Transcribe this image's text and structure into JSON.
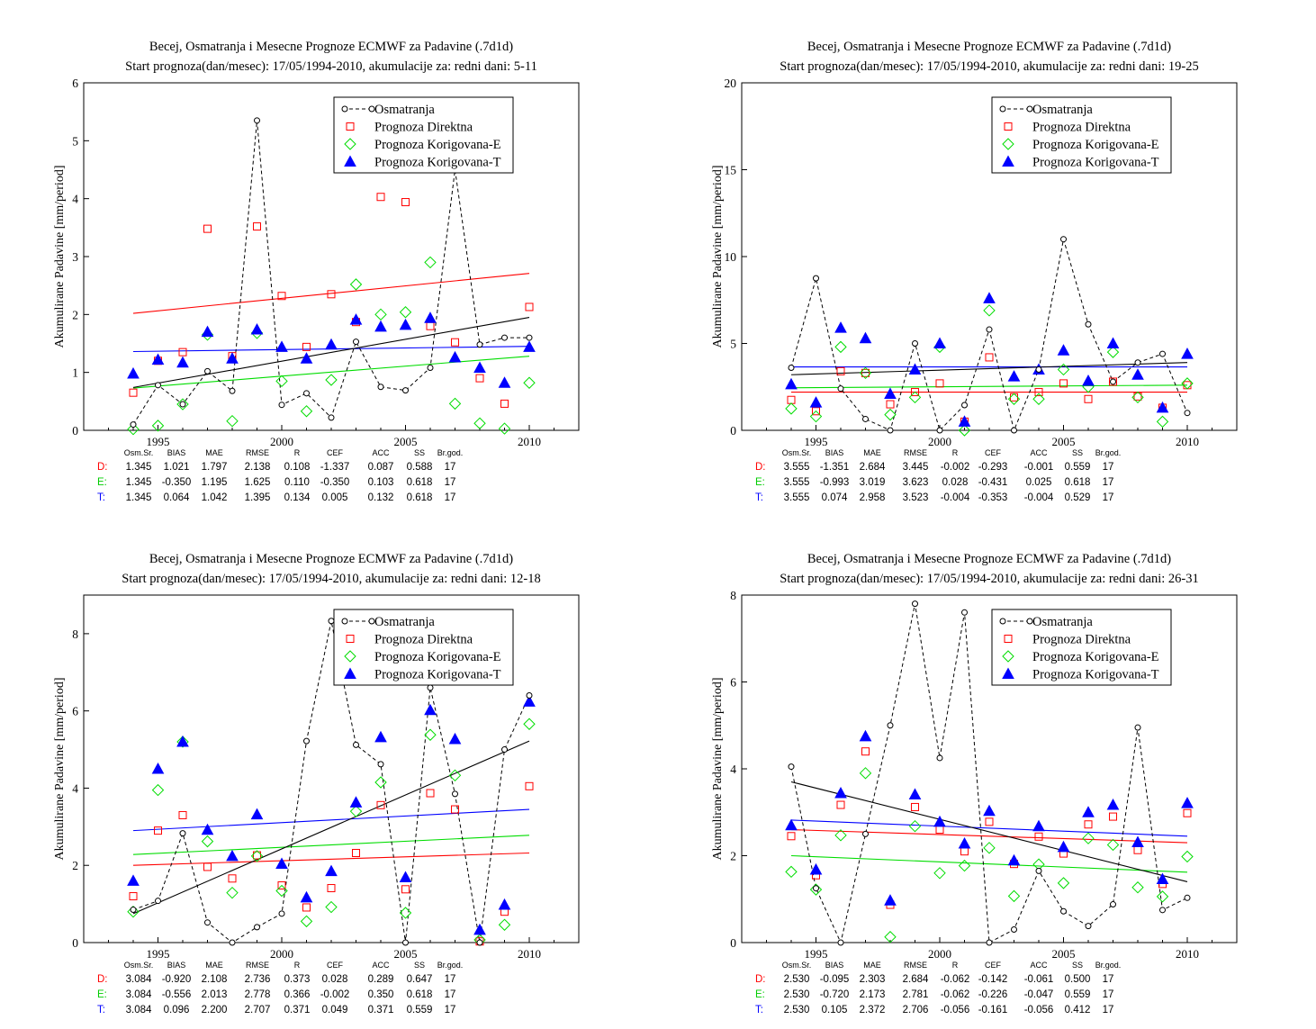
{
  "legend": {
    "obs": "Osmatranja",
    "d": "Prognoza Direktna",
    "e": "Prognoza Korigovana-E",
    "t": "Prognoza Korigovana-T"
  },
  "colors": {
    "obs": "#000000",
    "d": "#ff0000",
    "e": "#00dd00",
    "t": "#0000ff"
  },
  "chart_data": [
    {
      "type": "scatter",
      "title": "Becej, Osmatranja i Mesecne Prognoze ECMWF za Padavine (.7d1d)",
      "subtitle": "Start prognoza(dan/mesec): 17/05/1994-2010, akumulacije za: redni dani: 5-11",
      "ylabel": "Akumulirane Padavine [mm/period]",
      "xlim": [
        1992,
        2012
      ],
      "ylim": [
        0,
        6
      ],
      "yticks": [
        0,
        1,
        2,
        3,
        4,
        5,
        6
      ],
      "xticks": [
        1995,
        2000,
        2005,
        2010
      ],
      "x": [
        1994,
        1995,
        1996,
        1997,
        1998,
        1999,
        2000,
        2001,
        2002,
        2003,
        2004,
        2005,
        2006,
        2007,
        2008,
        2009,
        2010
      ],
      "obs": [
        0.1,
        0.78,
        0.45,
        1.02,
        0.68,
        5.35,
        0.44,
        0.64,
        0.22,
        1.53,
        0.75,
        0.69,
        1.08,
        4.5,
        1.48,
        1.6,
        1.6
      ],
      "d": [
        0.65,
        1.2,
        1.35,
        3.48,
        1.28,
        3.52,
        2.32,
        1.44,
        2.35,
        1.87,
        4.03,
        3.94,
        1.8,
        1.52,
        0.9,
        0.46,
        2.13
      ],
      "e": [
        0.02,
        0.08,
        0.45,
        1.65,
        0.16,
        1.68,
        0.85,
        0.33,
        0.87,
        2.52,
        2.0,
        2.04,
        2.9,
        0.46,
        0.12,
        0.03,
        0.82
      ],
      "t": [
        0.98,
        1.22,
        1.17,
        1.7,
        1.24,
        1.74,
        1.44,
        1.24,
        1.48,
        1.91,
        1.79,
        1.82,
        1.94,
        1.26,
        1.08,
        0.82,
        1.44
      ],
      "trend": {
        "obs": [
          0.74,
          1.95
        ],
        "d": [
          2.02,
          2.71
        ],
        "e": [
          0.73,
          1.28
        ],
        "t": [
          1.36,
          1.45
        ]
      },
      "stats": {
        "headers": [
          "Osm.Sr.",
          "BIAS",
          "MAE",
          "RMSE",
          "R",
          "CEF",
          "ACC",
          "SS",
          "Br.god."
        ],
        "rows": [
          {
            "label": "D:",
            "values": [
              "1.345",
              "1.021",
              "1.797",
              "2.138",
              "0.108",
              "-1.337",
              "0.087",
              "0.588",
              "17"
            ]
          },
          {
            "label": "E:",
            "values": [
              "1.345",
              "-0.350",
              "1.195",
              "1.625",
              "0.110",
              "-0.350",
              "0.103",
              "0.618",
              "17"
            ]
          },
          {
            "label": "T:",
            "values": [
              "1.345",
              "0.064",
              "1.042",
              "1.395",
              "0.134",
              "0.005",
              "0.132",
              "0.618",
              "17"
            ]
          }
        ]
      }
    },
    {
      "type": "scatter",
      "title": "Becej, Osmatranja i Mesecne Prognoze ECMWF za Padavine (.7d1d)",
      "subtitle": "Start prognoza(dan/mesec): 17/05/1994-2010, akumulacije za: redni dani: 19-25",
      "ylabel": "Akumulirane Padavine [mm/period]",
      "xlim": [
        1992,
        2012
      ],
      "ylim": [
        0,
        20
      ],
      "yticks": [
        0,
        5,
        10,
        15,
        20
      ],
      "xticks": [
        1995,
        2000,
        2005,
        2010
      ],
      "x": [
        1994,
        1995,
        1996,
        1997,
        1998,
        1999,
        2000,
        2001,
        2002,
        2003,
        2004,
        2005,
        2006,
        2007,
        2008,
        2009,
        2010
      ],
      "obs": [
        3.6,
        8.75,
        2.4,
        0.65,
        0.0,
        5.0,
        0.0,
        1.45,
        5.8,
        0.0,
        3.5,
        11.0,
        6.1,
        2.8,
        3.9,
        4.4,
        1.0
      ],
      "d": [
        1.75,
        1.1,
        3.4,
        3.3,
        1.5,
        2.2,
        2.7,
        0.5,
        4.2,
        1.9,
        2.2,
        2.7,
        1.8,
        2.8,
        1.95,
        1.3,
        2.6
      ],
      "e": [
        1.25,
        0.8,
        4.8,
        3.3,
        0.9,
        1.9,
        4.8,
        0.0,
        6.9,
        1.8,
        1.8,
        3.5,
        2.5,
        4.5,
        1.9,
        0.5,
        2.7
      ],
      "t": [
        2.65,
        1.6,
        5.9,
        5.3,
        2.1,
        3.5,
        5.0,
        0.5,
        7.6,
        3.1,
        3.5,
        4.6,
        2.85,
        5.0,
        3.2,
        1.3,
        4.4
      ],
      "trend": {
        "obs": [
          3.2,
          3.9
        ],
        "d": [
          2.2,
          2.2
        ],
        "e": [
          2.45,
          2.6
        ],
        "t": [
          3.65,
          3.65
        ]
      },
      "stats": {
        "headers": [
          "Osm.Sr.",
          "BIAS",
          "MAE",
          "RMSE",
          "R",
          "CEF",
          "ACC",
          "SS",
          "Br.god."
        ],
        "rows": [
          {
            "label": "D:",
            "values": [
              "3.555",
              "-1.351",
              "2.684",
              "3.445",
              "-0.002",
              "-0.293",
              "-0.001",
              "0.559",
              "17"
            ]
          },
          {
            "label": "E:",
            "values": [
              "3.555",
              "-0.993",
              "3.019",
              "3.623",
              "0.028",
              "-0.431",
              "0.025",
              "0.618",
              "17"
            ]
          },
          {
            "label": "T:",
            "values": [
              "3.555",
              "0.074",
              "2.958",
              "3.523",
              "-0.004",
              "-0.353",
              "-0.004",
              "0.529",
              "17"
            ]
          }
        ]
      }
    },
    {
      "type": "scatter",
      "title": "Becej, Osmatranja i Mesecne Prognoze ECMWF za Padavine (.7d1d)",
      "subtitle": "Start prognoza(dan/mesec): 17/05/1994-2010, akumulacije za: redni dani: 12-18",
      "ylabel": "Akumulirane Padavine [mm/period]",
      "xlim": [
        1992,
        2012
      ],
      "ylim": [
        0,
        9
      ],
      "yticks": [
        0,
        2,
        4,
        6,
        8
      ],
      "xticks": [
        1995,
        2000,
        2005,
        2010
      ],
      "x": [
        1994,
        1995,
        1996,
        1997,
        1998,
        1999,
        2000,
        2001,
        2002,
        2003,
        2004,
        2005,
        2006,
        2007,
        2008,
        2009,
        2010
      ],
      "obs": [
        0.85,
        1.08,
        2.83,
        0.52,
        0.0,
        0.4,
        0.75,
        5.22,
        8.33,
        5.12,
        4.62,
        0.0,
        6.6,
        3.85,
        0.0,
        5.0,
        6.4
      ],
      "d": [
        1.2,
        2.9,
        3.3,
        1.96,
        1.66,
        2.26,
        1.48,
        0.91,
        1.41,
        2.32,
        3.56,
        1.38,
        3.87,
        3.45,
        0.03,
        0.8,
        4.05
      ],
      "e": [
        0.8,
        3.95,
        5.2,
        2.62,
        1.29,
        2.24,
        1.34,
        0.55,
        0.92,
        3.4,
        4.15,
        0.77,
        5.38,
        4.33,
        0.07,
        0.46,
        5.66
      ],
      "t": [
        1.6,
        4.5,
        5.2,
        2.92,
        2.24,
        3.32,
        2.04,
        1.17,
        1.85,
        3.63,
        5.32,
        1.69,
        6.02,
        5.27,
        0.33,
        0.98,
        6.24
      ],
      "trend": {
        "obs": [
          0.75,
          5.22
        ],
        "d": [
          2.0,
          2.32
        ],
        "e": [
          2.28,
          2.78
        ],
        "t": [
          2.9,
          3.45
        ]
      },
      "stats": {
        "headers": [
          "Osm.Sr.",
          "BIAS",
          "MAE",
          "RMSE",
          "R",
          "CEF",
          "ACC",
          "SS",
          "Br.god."
        ],
        "rows": [
          {
            "label": "D:",
            "values": [
              "3.084",
              "-0.920",
              "2.108",
              "2.736",
              "0.373",
              "0.028",
              "0.289",
              "0.647",
              "17"
            ]
          },
          {
            "label": "E:",
            "values": [
              "3.084",
              "-0.556",
              "2.013",
              "2.778",
              "0.366",
              "-0.002",
              "0.350",
              "0.618",
              "17"
            ]
          },
          {
            "label": "T:",
            "values": [
              "3.084",
              "0.096",
              "2.200",
              "2.707",
              "0.371",
              "0.049",
              "0.371",
              "0.559",
              "17"
            ]
          }
        ]
      }
    },
    {
      "type": "scatter",
      "title": "Becej, Osmatranja i Mesecne Prognoze ECMWF za Padavine (.7d1d)",
      "subtitle": "Start prognoza(dan/mesec): 17/05/1994-2010, akumulacije za: redni dani: 26-31",
      "ylabel": "Akumulirane Padavine [mm/period]",
      "xlim": [
        1992,
        2012
      ],
      "ylim": [
        0,
        8
      ],
      "yticks": [
        0,
        2,
        4,
        6,
        8
      ],
      "xticks": [
        1995,
        2000,
        2005,
        2010
      ],
      "x": [
        1994,
        1995,
        1996,
        1997,
        1998,
        1999,
        2000,
        2001,
        2002,
        2003,
        2004,
        2005,
        2006,
        2007,
        2008,
        2009,
        2010
      ],
      "obs": [
        4.05,
        1.25,
        0.0,
        2.5,
        5.0,
        7.8,
        4.25,
        7.6,
        0.0,
        0.3,
        1.65,
        0.72,
        0.38,
        0.88,
        4.95,
        0.75,
        1.03
      ],
      "d": [
        2.45,
        1.55,
        3.17,
        4.4,
        0.87,
        3.12,
        2.6,
        2.1,
        2.78,
        1.81,
        2.44,
        2.05,
        2.72,
        2.9,
        2.13,
        1.35,
        2.98
      ],
      "e": [
        1.63,
        1.22,
        2.47,
        3.9,
        0.13,
        2.68,
        1.6,
        1.77,
        2.18,
        1.07,
        1.8,
        1.37,
        2.4,
        2.25,
        1.27,
        1.06,
        1.98
      ],
      "t": [
        2.7,
        1.68,
        3.44,
        4.75,
        0.97,
        3.41,
        2.78,
        2.28,
        3.03,
        1.89,
        2.68,
        2.2,
        3.0,
        3.17,
        2.31,
        1.46,
        3.21
      ],
      "trend": {
        "obs": [
          3.7,
          1.4
        ],
        "d": [
          2.6,
          2.3
        ],
        "e": [
          2.0,
          1.62
        ],
        "t": [
          2.82,
          2.45
        ]
      },
      "stats": {
        "headers": [
          "Osm.Sr.",
          "BIAS",
          "MAE",
          "RMSE",
          "R",
          "CEF",
          "ACC",
          "SS",
          "Br.god."
        ],
        "rows": [
          {
            "label": "D:",
            "values": [
              "2.530",
              "-0.095",
              "2.303",
              "2.684",
              "-0.062",
              "-0.142",
              "-0.061",
              "0.500",
              "17"
            ]
          },
          {
            "label": "E:",
            "values": [
              "2.530",
              "-0.720",
              "2.173",
              "2.781",
              "-0.062",
              "-0.226",
              "-0.047",
              "0.559",
              "17"
            ]
          },
          {
            "label": "T:",
            "values": [
              "2.530",
              "0.105",
              "2.372",
              "2.706",
              "-0.056",
              "-0.161",
              "-0.056",
              "0.412",
              "17"
            ]
          }
        ]
      }
    }
  ]
}
